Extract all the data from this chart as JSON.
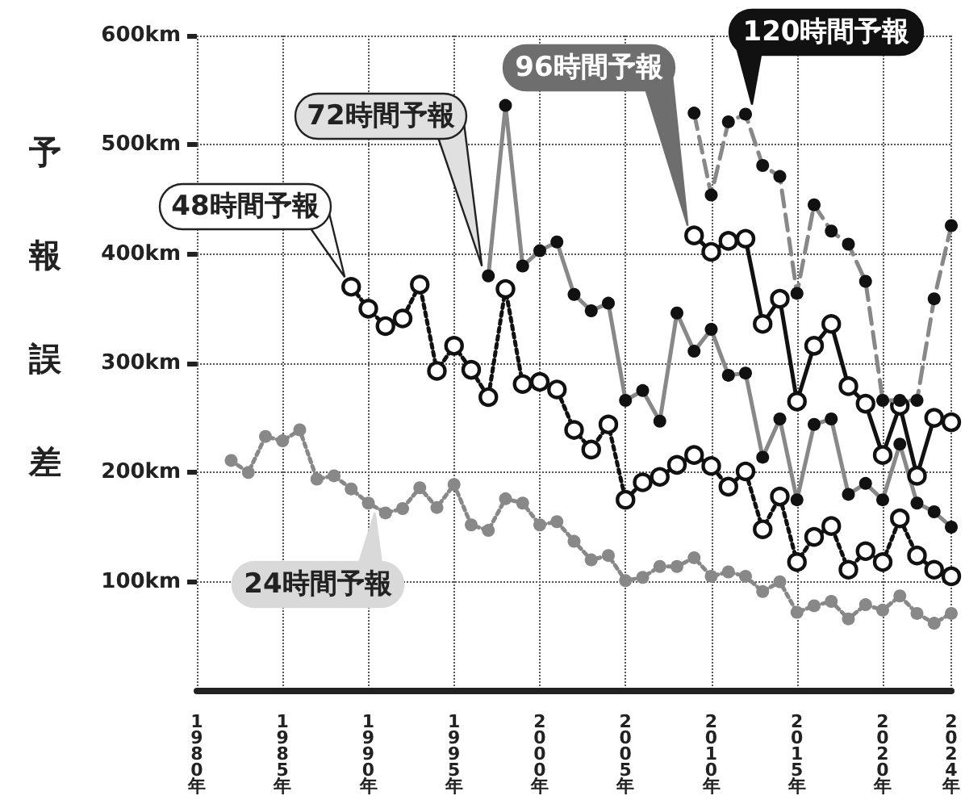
{
  "chart_data": {
    "type": "line",
    "ylabel": "予報誤差",
    "xlim": [
      1980,
      2024
    ],
    "ylim": [
      0,
      600
    ],
    "xticks": [
      {
        "value": 1980,
        "label": "1980年"
      },
      {
        "value": 1985,
        "label": "1985年"
      },
      {
        "value": 1990,
        "label": "1990年"
      },
      {
        "value": 1995,
        "label": "1995年"
      },
      {
        "value": 2000,
        "label": "2000年"
      },
      {
        "value": 2005,
        "label": "2005年"
      },
      {
        "value": 2010,
        "label": "2010年"
      },
      {
        "value": 2015,
        "label": "2015年"
      },
      {
        "value": 2020,
        "label": "2020年"
      },
      {
        "value": 2024,
        "label": "2024年"
      }
    ],
    "yticks": [
      {
        "value": 100,
        "label": "100km"
      },
      {
        "value": 200,
        "label": "200km"
      },
      {
        "value": 300,
        "label": "300km"
      },
      {
        "value": 400,
        "label": "400km"
      },
      {
        "value": 500,
        "label": "500km"
      },
      {
        "value": 600,
        "label": "600km"
      }
    ],
    "grid": true,
    "legend": false,
    "marker": "circle",
    "series": [
      {
        "name": "24時間予報",
        "color": "#888888",
        "line_style": "dotted",
        "x": [
          1982,
          1983,
          1984,
          1985,
          1986,
          1987,
          1988,
          1989,
          1990,
          1991,
          1992,
          1993,
          1994,
          1995,
          1996,
          1997,
          1998,
          1999,
          2000,
          2001,
          2002,
          2003,
          2004,
          2005,
          2006,
          2007,
          2008,
          2009,
          2010,
          2011,
          2012,
          2013,
          2014,
          2015,
          2016,
          2017,
          2018,
          2019,
          2020,
          2021,
          2022,
          2023,
          2024
        ],
        "values": [
          211,
          200,
          233,
          229,
          239,
          194,
          197,
          185,
          172,
          163,
          167,
          186,
          168,
          189,
          152,
          147,
          176,
          172,
          152,
          155,
          137,
          120,
          124,
          101,
          104,
          114,
          114,
          122,
          105,
          109,
          105,
          91,
          100,
          72,
          78,
          82,
          66,
          79,
          74,
          87,
          71,
          62,
          71
        ]
      },
      {
        "name": "48時間予報",
        "color": "#111111",
        "line_style": "dotted",
        "x": [
          1989,
          1990,
          1991,
          1992,
          1993,
          1994,
          1995,
          1996,
          1997,
          1998,
          1999,
          2000,
          2001,
          2002,
          2003,
          2004,
          2005,
          2006,
          2007,
          2008,
          2009,
          2010,
          2011,
          2012,
          2013,
          2014,
          2015,
          2016,
          2017,
          2018,
          2019,
          2020,
          2021,
          2022,
          2023,
          2024
        ],
        "values": [
          370,
          350,
          334,
          341,
          372,
          293,
          316,
          294,
          269,
          368,
          281,
          283,
          276,
          239,
          221,
          244,
          175,
          191,
          196,
          207,
          216,
          206,
          187,
          201,
          148,
          178,
          118,
          141,
          151,
          111,
          128,
          118,
          158,
          124,
          111,
          105
        ]
      },
      {
        "name": "72時間予報",
        "color": "#888888",
        "line_style": "solid",
        "x": [
          1997,
          1998,
          1999,
          2000,
          2001,
          2002,
          2003,
          2004,
          2005,
          2006,
          2007,
          2008,
          2009,
          2010,
          2011,
          2012,
          2013,
          2014,
          2015,
          2016,
          2017,
          2018,
          2019,
          2020,
          2021,
          2022,
          2023,
          2024
        ],
        "values": [
          380,
          536,
          389,
          403,
          411,
          363,
          348,
          355,
          266,
          275,
          247,
          346,
          311,
          331,
          289,
          291,
          214,
          249,
          175,
          244,
          249,
          180,
          190,
          175,
          226,
          172,
          164,
          150
        ]
      },
      {
        "name": "96時間予報",
        "color": "#111111",
        "line_style": "solid",
        "x": [
          2009,
          2010,
          2011,
          2012,
          2013,
          2014,
          2015,
          2016,
          2017,
          2018,
          2019,
          2020,
          2021,
          2022,
          2023,
          2024
        ],
        "values": [
          417,
          402,
          412,
          414,
          336,
          359,
          265,
          316,
          336,
          279,
          263,
          216,
          261,
          197,
          250,
          246
        ]
      },
      {
        "name": "120時間予報",
        "color": "#888888",
        "line_style": "dashed",
        "x": [
          2009,
          2010,
          2011,
          2012,
          2013,
          2014,
          2015,
          2016,
          2017,
          2018,
          2019,
          2020,
          2021,
          2022,
          2023,
          2024
        ],
        "values": [
          529,
          454,
          521,
          528,
          481,
          471,
          364,
          445,
          421,
          409,
          375,
          266,
          266,
          266,
          359,
          426
        ]
      }
    ]
  }
}
